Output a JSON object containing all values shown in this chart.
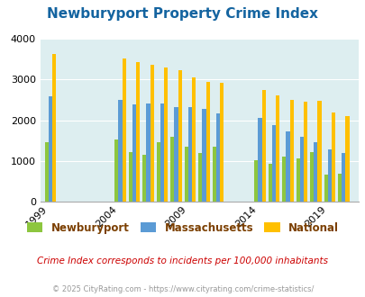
{
  "title": "Newburyport Property Crime Index",
  "subtitle": "Crime Index corresponds to incidents per 100,000 inhabitants",
  "footer": "© 2025 CityRating.com - https://www.cityrating.com/crime-statistics/",
  "years": [
    1999,
    2004,
    2005,
    2006,
    2007,
    2008,
    2009,
    2010,
    2011,
    2014,
    2015,
    2016,
    2017,
    2018,
    2019,
    2020
  ],
  "newburyport": [
    1470,
    1530,
    1220,
    1160,
    1470,
    1600,
    1360,
    1200,
    1360,
    1030,
    940,
    1100,
    1060,
    1220,
    680,
    690
  ],
  "massachusetts": [
    2590,
    2490,
    2380,
    2420,
    2420,
    2330,
    2330,
    2270,
    2160,
    2060,
    1880,
    1720,
    1590,
    1470,
    1280,
    1190
  ],
  "national": [
    3620,
    3510,
    3420,
    3350,
    3290,
    3220,
    3050,
    2950,
    2920,
    2740,
    2620,
    2510,
    2460,
    2470,
    2200,
    2100
  ],
  "tick_years": [
    1999,
    2004,
    2009,
    2014,
    2019
  ],
  "ylim": [
    0,
    4000
  ],
  "yticks": [
    0,
    1000,
    2000,
    3000,
    4000
  ],
  "color_newburyport": "#8dc63f",
  "color_massachusetts": "#5b9bd5",
  "color_national": "#ffc000",
  "color_title": "#1464a0",
  "color_background": "#ddeef0",
  "color_legend_label": "#7b3f00",
  "color_subtitle": "#cc0000",
  "color_footer": "#999999",
  "bar_width": 0.27,
  "legend_labels": [
    "Newburyport",
    "Massachusetts",
    "National"
  ]
}
